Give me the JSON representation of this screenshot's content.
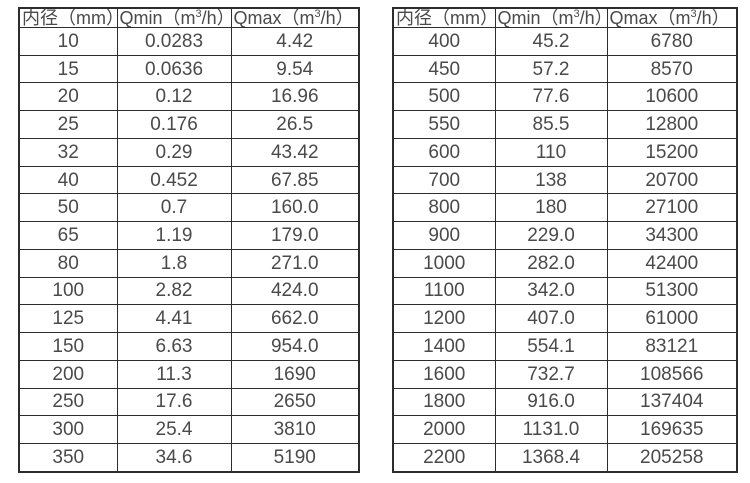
{
  "headers": {
    "diameter": "内径（mm）",
    "qmin_pre": "Qmin（m",
    "qmin_sup": "3",
    "qmin_post": "/h）",
    "qmax_pre": "Qmax（m",
    "qmax_sup": "3",
    "qmax_post": "/h）"
  },
  "tables": {
    "left": {
      "rows": [
        [
          "10",
          "0.0283",
          "4.42"
        ],
        [
          "15",
          "0.0636",
          "9.54"
        ],
        [
          "20",
          "0.12",
          "16.96"
        ],
        [
          "25",
          "0.176",
          "26.5"
        ],
        [
          "32",
          "0.29",
          "43.42"
        ],
        [
          "40",
          "0.452",
          "67.85"
        ],
        [
          "50",
          "0.7",
          "160.0"
        ],
        [
          "65",
          "1.19",
          "179.0"
        ],
        [
          "80",
          "1.8",
          "271.0"
        ],
        [
          "100",
          "2.82",
          "424.0"
        ],
        [
          "125",
          "4.41",
          "662.0"
        ],
        [
          "150",
          "6.63",
          "954.0"
        ],
        [
          "200",
          "11.3",
          "1690"
        ],
        [
          "250",
          "17.6",
          "2650"
        ],
        [
          "300",
          "25.4",
          "3810"
        ],
        [
          "350",
          "34.6",
          "5190"
        ]
      ]
    },
    "right": {
      "rows": [
        [
          "400",
          "45.2",
          "6780"
        ],
        [
          "450",
          "57.2",
          "8570"
        ],
        [
          "500",
          "77.6",
          "10600"
        ],
        [
          "550",
          "85.5",
          "12800"
        ],
        [
          "600",
          "110",
          "15200"
        ],
        [
          "700",
          "138",
          "20700"
        ],
        [
          "800",
          "180",
          "27100"
        ],
        [
          "900",
          "229.0",
          "34300"
        ],
        [
          "1000",
          "282.0",
          "42400"
        ],
        [
          "1100",
          "342.0",
          "51300"
        ],
        [
          "1200",
          "407.0",
          "61000"
        ],
        [
          "1400",
          "554.1",
          "83121"
        ],
        [
          "1600",
          "732.7",
          "108566"
        ],
        [
          "1800",
          "916.0",
          "137404"
        ],
        [
          "2000",
          "1131.0",
          "169635"
        ],
        [
          "2200",
          "1368.4",
          "205258"
        ]
      ]
    }
  }
}
